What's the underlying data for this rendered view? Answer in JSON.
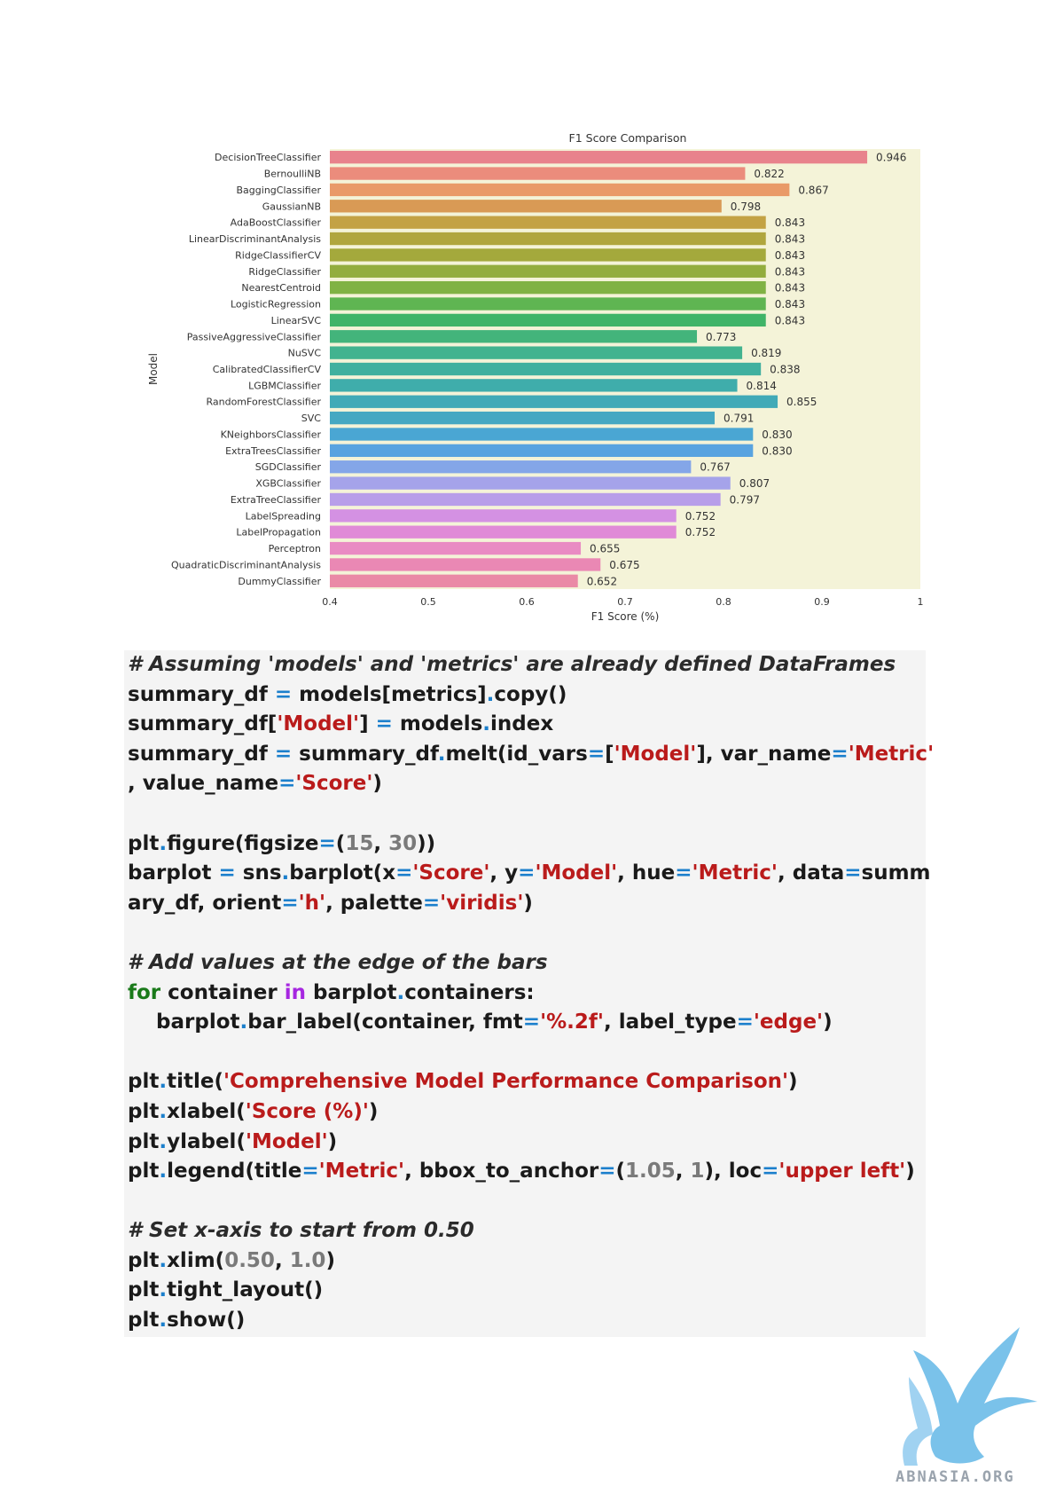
{
  "chart_data": {
    "type": "bar",
    "orientation": "horizontal",
    "title": "F1 Score Comparison",
    "xlabel": "F1 Score (%)",
    "ylabel": "Model",
    "xlim": [
      0.4,
      1.0
    ],
    "xticks": [
      "0.4",
      "0.5",
      "0.6",
      "0.7",
      "0.8",
      "0.9",
      "1"
    ],
    "categories": [
      "DecisionTreeClassifier",
      "BernoulliNB",
      "BaggingClassifier",
      "GaussianNB",
      "AdaBoostClassifier",
      "LinearDiscriminantAnalysis",
      "RidgeClassifierCV",
      "RidgeClassifier",
      "NearestCentroid",
      "LogisticRegression",
      "LinearSVC",
      "PassiveAggressiveClassifier",
      "NuSVC",
      "CalibratedClassifierCV",
      "LGBMClassifier",
      "RandomForestClassifier",
      "SVC",
      "KNeighborsClassifier",
      "ExtraTreesClassifier",
      "SGDClassifier",
      "XGBClassifier",
      "ExtraTreeClassifier",
      "LabelSpreading",
      "LabelPropagation",
      "Perceptron",
      "QuadraticDiscriminantAnalysis",
      "DummyClassifier"
    ],
    "values": [
      0.946,
      0.822,
      0.867,
      0.798,
      0.843,
      0.843,
      0.843,
      0.843,
      0.843,
      0.843,
      0.843,
      0.773,
      0.819,
      0.838,
      0.814,
      0.855,
      0.791,
      0.83,
      0.83,
      0.767,
      0.807,
      0.797,
      0.752,
      0.752,
      0.655,
      0.675,
      0.652
    ],
    "labels": [
      "0.946",
      "0.822",
      "0.867",
      "0.798",
      "0.843",
      "0.843",
      "0.843",
      "0.843",
      "0.843",
      "0.843",
      "0.843",
      "0.773",
      "0.819",
      "0.838",
      "0.814",
      "0.855",
      "0.791",
      "0.830",
      "0.830",
      "0.767",
      "0.807",
      "0.797",
      "0.752",
      "0.752",
      "0.655",
      "0.675",
      "0.652"
    ],
    "colors": [
      "#e8828c",
      "#eb8c7c",
      "#e99a68",
      "#d99a55",
      "#c3a244",
      "#b0a63e",
      "#a4a93c",
      "#93ad3e",
      "#80b244",
      "#5fb552",
      "#40b468",
      "#43b47b",
      "#42b38f",
      "#40b09f",
      "#3fadab",
      "#41aab7",
      "#45a8c2",
      "#4aa6d3",
      "#58a3e0",
      "#84a6e8",
      "#a5a3ea",
      "#b89ee9",
      "#d491e3",
      "#e08ad7",
      "#e98bc3",
      "#ea88b4",
      "#ea8aa6"
    ],
    "plot_background": "#f4f3d8",
    "grid": false,
    "legend": "none"
  },
  "code": {
    "lines": [
      [
        {
          "t": "# Assuming 'models' and 'metrics' are already defined DataFrames",
          "c": "comment"
        }
      ],
      [
        {
          "t": "summary_df "
        },
        {
          "t": "=",
          "c": "op"
        },
        {
          "t": " models[metrics]"
        },
        {
          "t": ".",
          "c": "op"
        },
        {
          "t": "copy()"
        }
      ],
      [
        {
          "t": "summary_df["
        },
        {
          "t": "'Model'",
          "c": "str"
        },
        {
          "t": "] "
        },
        {
          "t": "=",
          "c": "op"
        },
        {
          "t": " models"
        },
        {
          "t": ".",
          "c": "op"
        },
        {
          "t": "index"
        }
      ],
      [
        {
          "t": "summary_df "
        },
        {
          "t": "=",
          "c": "op"
        },
        {
          "t": " summary_df"
        },
        {
          "t": ".",
          "c": "op"
        },
        {
          "t": "melt(id_vars"
        },
        {
          "t": "=",
          "c": "op"
        },
        {
          "t": "["
        },
        {
          "t": "'Model'",
          "c": "str"
        },
        {
          "t": "], var_name"
        },
        {
          "t": "=",
          "c": "op"
        },
        {
          "t": "'Metric'",
          "c": "str"
        }
      ],
      [
        {
          "t": ", value_name"
        },
        {
          "t": "=",
          "c": "op"
        },
        {
          "t": "'Score'",
          "c": "str"
        },
        {
          "t": ")"
        }
      ],
      [],
      [
        {
          "t": "plt"
        },
        {
          "t": ".",
          "c": "op"
        },
        {
          "t": "figure(figsize"
        },
        {
          "t": "=",
          "c": "op"
        },
        {
          "t": "("
        },
        {
          "t": "15",
          "c": "num"
        },
        {
          "t": ", "
        },
        {
          "t": "30",
          "c": "num"
        },
        {
          "t": "))"
        }
      ],
      [
        {
          "t": "barplot "
        },
        {
          "t": "=",
          "c": "op"
        },
        {
          "t": " sns"
        },
        {
          "t": ".",
          "c": "op"
        },
        {
          "t": "barplot(x"
        },
        {
          "t": "=",
          "c": "op"
        },
        {
          "t": "'Score'",
          "c": "str"
        },
        {
          "t": ", y"
        },
        {
          "t": "=",
          "c": "op"
        },
        {
          "t": "'Model'",
          "c": "str"
        },
        {
          "t": ", hue"
        },
        {
          "t": "=",
          "c": "op"
        },
        {
          "t": "'Metric'",
          "c": "str"
        },
        {
          "t": ", data"
        },
        {
          "t": "=",
          "c": "op"
        },
        {
          "t": "summ"
        }
      ],
      [
        {
          "t": "ary_df, orient"
        },
        {
          "t": "=",
          "c": "op"
        },
        {
          "t": "'h'",
          "c": "str"
        },
        {
          "t": ", palette"
        },
        {
          "t": "=",
          "c": "op"
        },
        {
          "t": "'viridis'",
          "c": "str"
        },
        {
          "t": ")"
        }
      ],
      [],
      [
        {
          "t": "# Add values at the edge of the bars",
          "c": "comment"
        }
      ],
      [
        {
          "t": "for",
          "c": "kw-for"
        },
        {
          "t": " container "
        },
        {
          "t": "in",
          "c": "kw-in"
        },
        {
          "t": " barplot"
        },
        {
          "t": ".",
          "c": "op"
        },
        {
          "t": "containers:"
        }
      ],
      [
        {
          "t": "    barplot"
        },
        {
          "t": ".",
          "c": "op"
        },
        {
          "t": "bar_label(container, fmt"
        },
        {
          "t": "=",
          "c": "op"
        },
        {
          "t": "'%.2f'",
          "c": "str"
        },
        {
          "t": ", label_type"
        },
        {
          "t": "=",
          "c": "op"
        },
        {
          "t": "'edge'",
          "c": "str"
        },
        {
          "t": ")"
        }
      ],
      [],
      [
        {
          "t": "plt"
        },
        {
          "t": ".",
          "c": "op"
        },
        {
          "t": "title("
        },
        {
          "t": "'Comprehensive Model Performance Comparison'",
          "c": "str"
        },
        {
          "t": ")"
        }
      ],
      [
        {
          "t": "plt"
        },
        {
          "t": ".",
          "c": "op"
        },
        {
          "t": "xlabel("
        },
        {
          "t": "'Score (%)'",
          "c": "str"
        },
        {
          "t": ")"
        }
      ],
      [
        {
          "t": "plt"
        },
        {
          "t": ".",
          "c": "op"
        },
        {
          "t": "ylabel("
        },
        {
          "t": "'Model'",
          "c": "str"
        },
        {
          "t": ")"
        }
      ],
      [
        {
          "t": "plt"
        },
        {
          "t": ".",
          "c": "op"
        },
        {
          "t": "legend(title"
        },
        {
          "t": "=",
          "c": "op"
        },
        {
          "t": "'Metric'",
          "c": "str"
        },
        {
          "t": ", bbox_to_anchor"
        },
        {
          "t": "=",
          "c": "op"
        },
        {
          "t": "("
        },
        {
          "t": "1.05",
          "c": "num"
        },
        {
          "t": ", "
        },
        {
          "t": "1",
          "c": "num"
        },
        {
          "t": "), loc"
        },
        {
          "t": "=",
          "c": "op"
        },
        {
          "t": "'upper left'",
          "c": "str"
        },
        {
          "t": ")"
        }
      ],
      [],
      [
        {
          "t": "# Set x-axis to start from 0.50",
          "c": "comment"
        }
      ],
      [
        {
          "t": "plt"
        },
        {
          "t": ".",
          "c": "op"
        },
        {
          "t": "xlim("
        },
        {
          "t": "0.50",
          "c": "num"
        },
        {
          "t": ", "
        },
        {
          "t": "1.0",
          "c": "num"
        },
        {
          "t": ")"
        }
      ],
      [
        {
          "t": "plt"
        },
        {
          "t": ".",
          "c": "op"
        },
        {
          "t": "tight_layout()"
        }
      ],
      [
        {
          "t": "plt"
        },
        {
          "t": ".",
          "c": "op"
        },
        {
          "t": "show()"
        }
      ]
    ]
  },
  "logo": {
    "text": "ABNASIA.ORG",
    "icon": "griffin-logo-icon",
    "color": "#5ab3e6"
  }
}
